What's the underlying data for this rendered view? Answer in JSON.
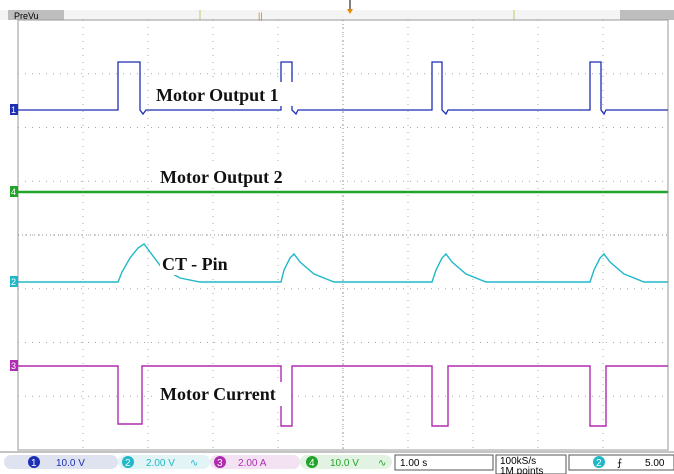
{
  "header": {
    "mode_label": "PreVu",
    "trigger_marker": "T"
  },
  "traces": [
    {
      "id": "ch1",
      "marker": "1",
      "label": "Motor Output 1",
      "color": "#1c2fb5"
    },
    {
      "id": "ch4",
      "marker": "4",
      "label": "Motor Output 2",
      "color": "#22a32a"
    },
    {
      "id": "ch2",
      "marker": "2",
      "label": "CT - Pin",
      "color": "#20b8c8"
    },
    {
      "id": "ch3",
      "marker": "3",
      "label": "Motor Current",
      "color": "#b02cb0"
    }
  ],
  "status_bar": {
    "ch1": {
      "num": "1",
      "value": "10.0 V"
    },
    "ch2": {
      "num": "2",
      "value": "2.00 V",
      "suffix": "∿"
    },
    "ch3": {
      "num": "3",
      "value": "2.00 A"
    },
    "ch4": {
      "num": "4",
      "value": "10.0 V",
      "suffix": "∿"
    },
    "timebase": "1.00 s",
    "sample_rate": "100kS/s",
    "record_length": "1M points",
    "trigger_channel": "2",
    "trigger_slope": "⨍",
    "trigger_level": "5.00"
  }
}
